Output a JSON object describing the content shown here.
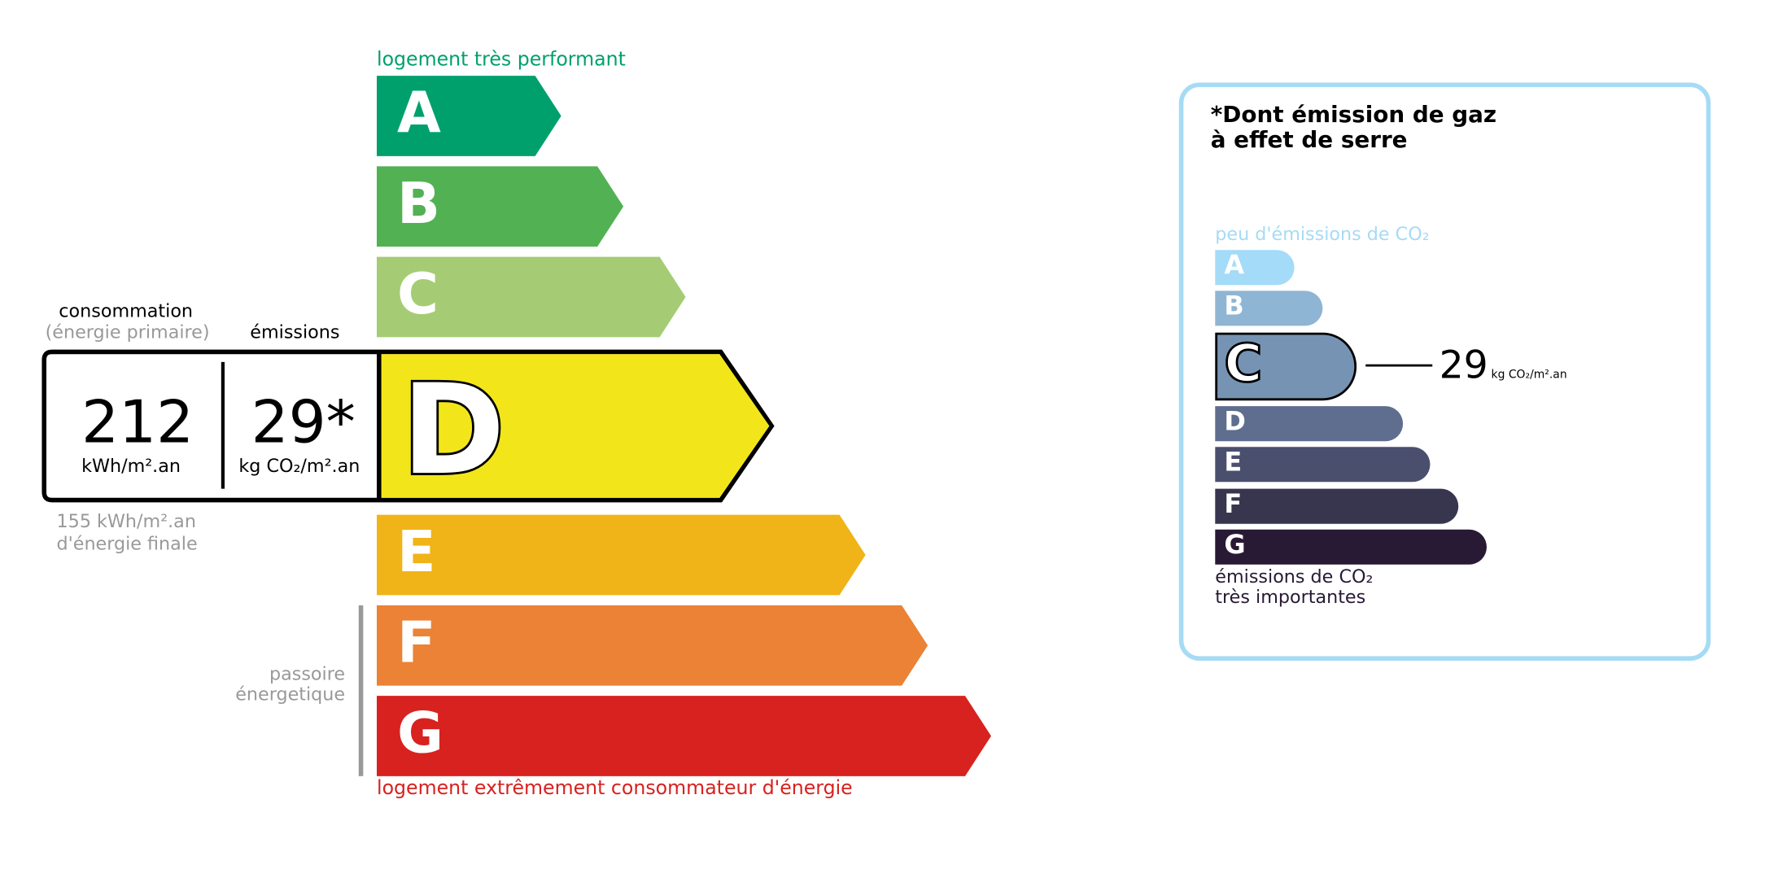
{
  "energy": {
    "top_label": "logement très performant",
    "bottom_label": "logement extrêmement consommateur d'énergie",
    "passoire_label_line1": "passoire",
    "passoire_label_line2": "énergetique",
    "classes": [
      {
        "letter": "A",
        "color": "#00a06d"
      },
      {
        "letter": "B",
        "color": "#52b153"
      },
      {
        "letter": "C",
        "color": "#a5cc74"
      },
      {
        "letter": "D",
        "color": "#f2e61a"
      },
      {
        "letter": "E",
        "color": "#f0b418"
      },
      {
        "letter": "F",
        "color": "#eb8235"
      },
      {
        "letter": "G",
        "color": "#d7221f"
      }
    ],
    "current_class": "D",
    "consumption_header": "consommation",
    "consumption_subheader": "(énergie primaire)",
    "emissions_header": "émissions",
    "consumption_value": "212",
    "consumption_unit": "kWh/m².an",
    "emissions_value": "29*",
    "emissions_unit": "kg CO₂/m².an",
    "final_energy_line1": "155 kWh/m².an",
    "final_energy_line2": "d'énergie finale"
  },
  "ges": {
    "title_line1": "*Dont émission de gaz",
    "title_line2": "à effet de serre",
    "top_label": "peu d'émissions de CO₂",
    "bottom_label_line1": "émissions de CO₂",
    "bottom_label_line2": "très importantes",
    "classes": [
      {
        "letter": "A",
        "color": "#a4dbf8"
      },
      {
        "letter": "B",
        "color": "#8fb5d4"
      },
      {
        "letter": "C",
        "color": "#7693b3"
      },
      {
        "letter": "D",
        "color": "#5f6d8f"
      },
      {
        "letter": "E",
        "color": "#4b4f6e"
      },
      {
        "letter": "F",
        "color": "#38354f"
      },
      {
        "letter": "G",
        "color": "#281a35"
      }
    ],
    "current_class": "C",
    "value": "29",
    "unit": "kg CO₂/m².an",
    "border_color": "#a6dbf5"
  }
}
